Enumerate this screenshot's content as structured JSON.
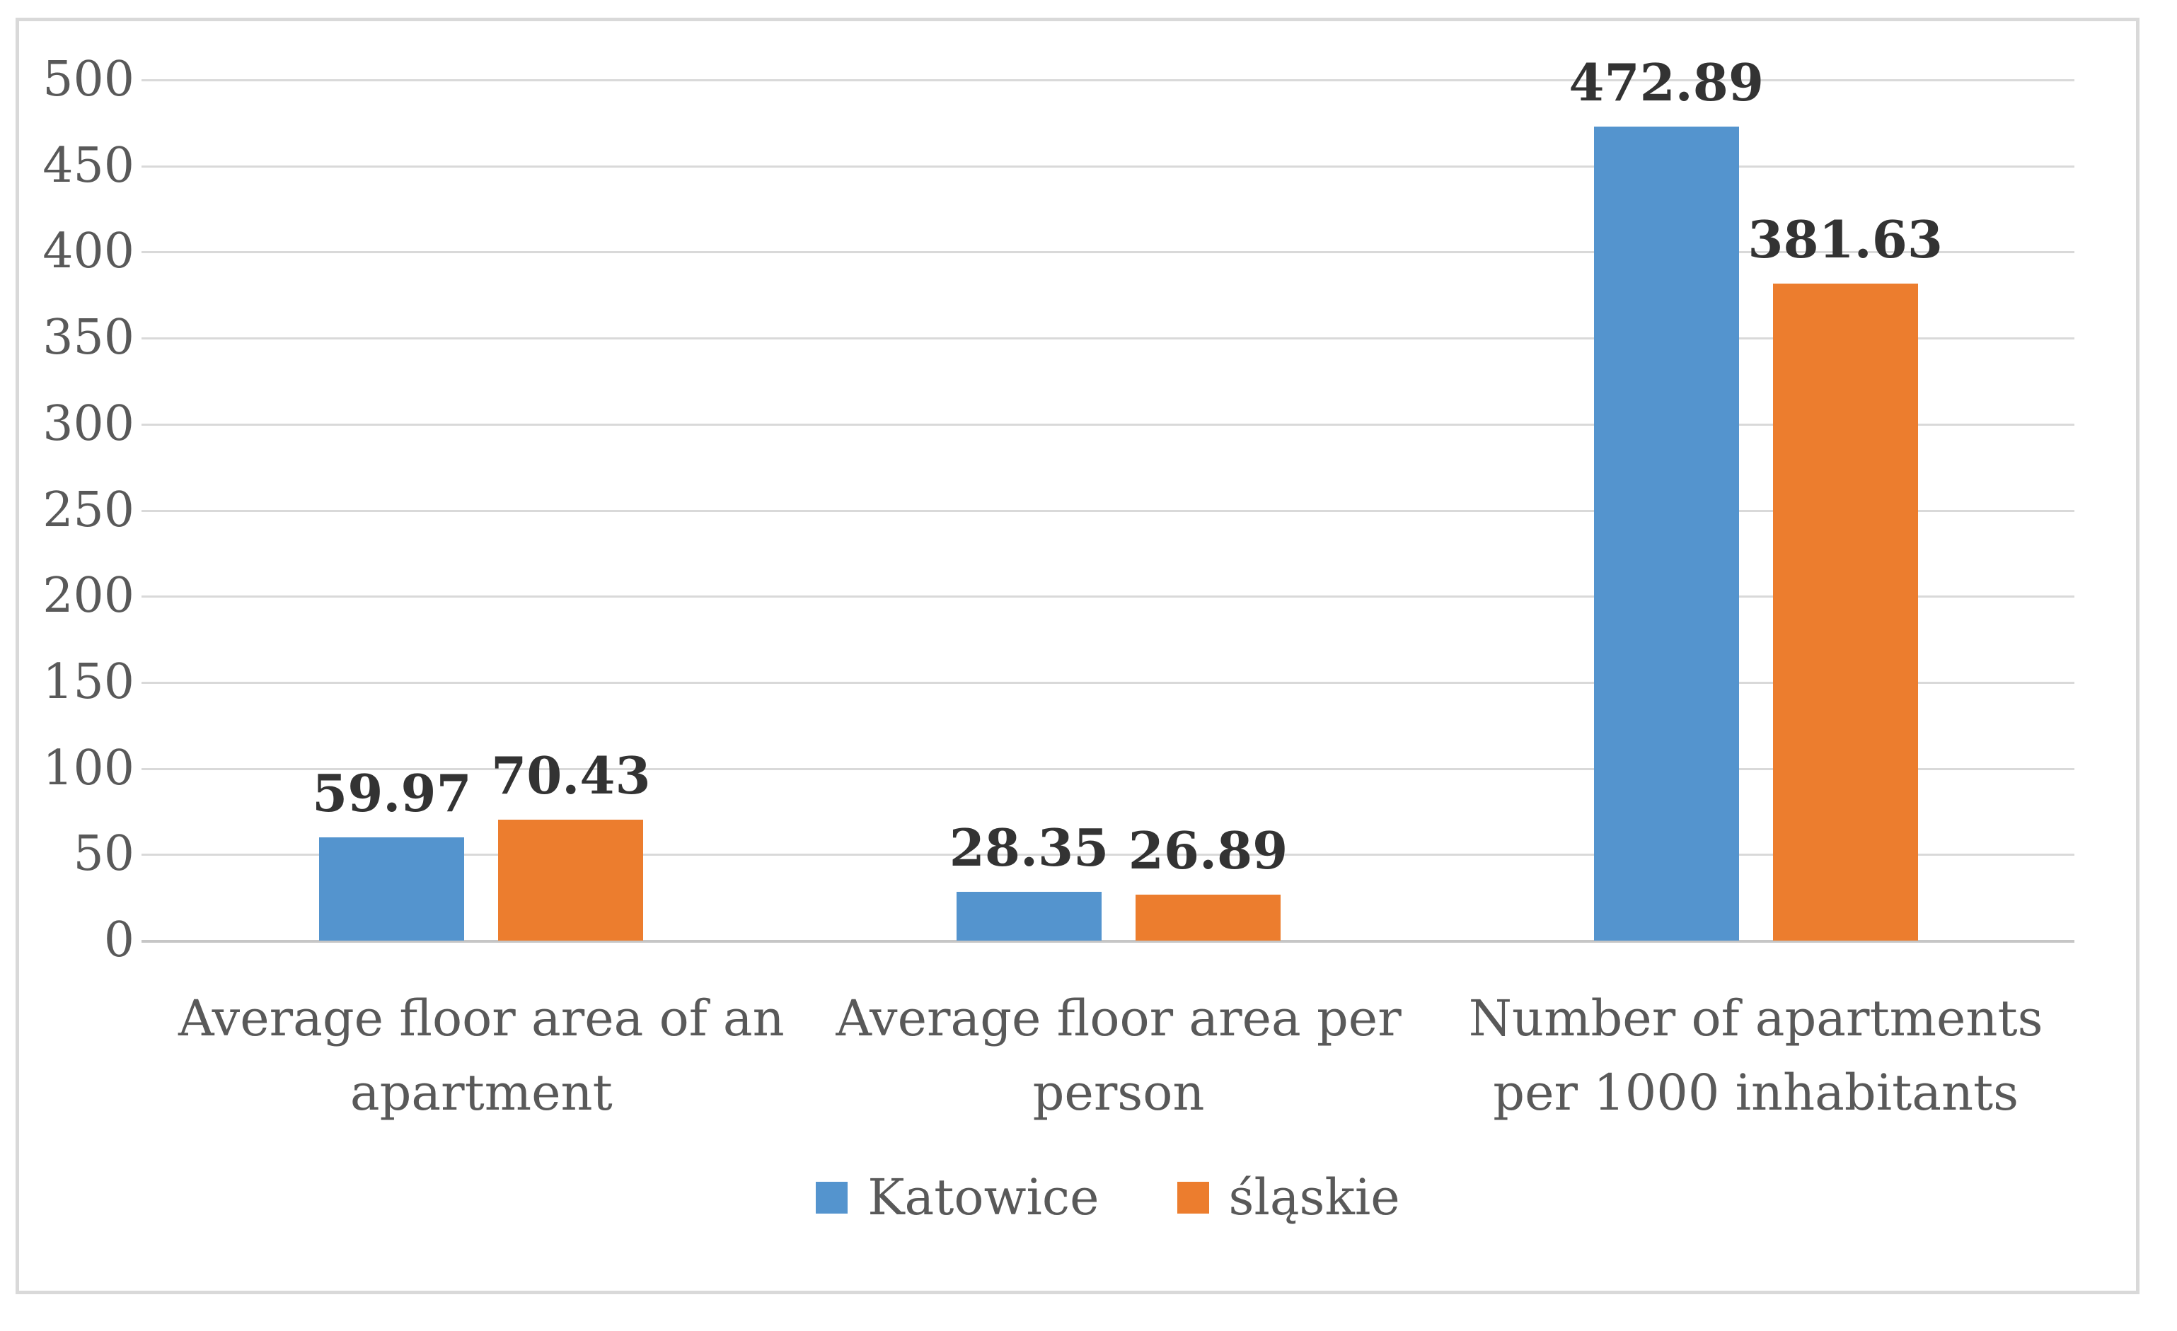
{
  "figure": {
    "background": "#FFFFFF",
    "border_color": "#D9D9D9"
  },
  "chart_data": {
    "type": "bar",
    "title": "",
    "categories": [
      "Average floor area of an\napartment",
      "Average floor area per\nperson",
      "Number of apartments\nper 1000 inhabitants"
    ],
    "series": [
      {
        "name": "Katowice",
        "color": "#5494CE",
        "values": [
          59.97,
          28.35,
          472.89
        ],
        "labels": [
          "59.97",
          "28.35",
          "472.89"
        ]
      },
      {
        "name": "śląskie",
        "color": "#EC7D2E",
        "values": [
          70.43,
          26.89,
          381.63
        ],
        "labels": [
          "70.43",
          "26.89",
          "381.63"
        ]
      }
    ],
    "ylim": [
      0,
      500
    ],
    "yticks": [
      0,
      50,
      100,
      150,
      200,
      250,
      300,
      350,
      400,
      450,
      500
    ],
    "grid": true,
    "gridline_color": "#D9D9D9",
    "axis_line_color": "#C6C6C6",
    "tick_text_color": "#595959",
    "category_text_color": "#595959",
    "data_label_color": "#333333",
    "legend_text_color": "#595959",
    "legend_position": "bottom"
  }
}
